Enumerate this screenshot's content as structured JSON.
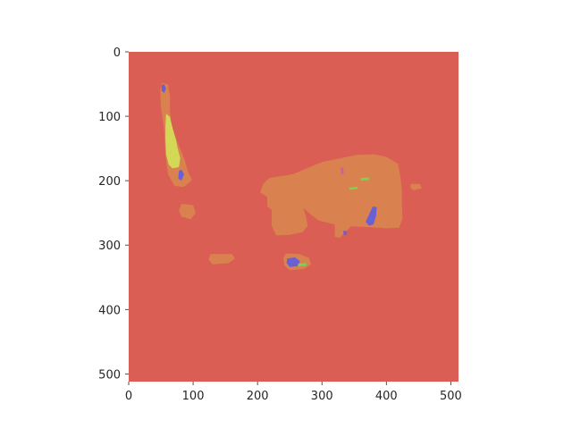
{
  "chart_data": {
    "type": "heatmap",
    "title": "",
    "xlabel": "",
    "ylabel": "",
    "xlim": [
      0,
      512
    ],
    "ylim": [
      512,
      0
    ],
    "grid": false,
    "x_ticks": [
      0,
      100,
      200,
      300,
      400,
      500
    ],
    "y_ticks": [
      0,
      100,
      200,
      300,
      400,
      500
    ],
    "x_tick_labels": [
      "0",
      "100",
      "200",
      "300",
      "400",
      "500"
    ],
    "y_tick_labels": [
      "0",
      "100",
      "200",
      "300",
      "400",
      "500"
    ],
    "colors": {
      "background": "#db5e55",
      "body": "#d9824f",
      "tail": "#d4d856",
      "blue": "#6b5fd4",
      "green": "#78d44e",
      "pink": "#d45c9e"
    },
    "regions": [
      {
        "name": "cat-body",
        "color_key": "body",
        "points": [
          [
            218,
            196
          ],
          [
            255,
            190
          ],
          [
            300,
            171
          ],
          [
            330,
            165
          ],
          [
            355,
            160
          ],
          [
            380,
            159
          ],
          [
            400,
            163
          ],
          [
            418,
            174
          ],
          [
            422,
            195
          ],
          [
            424,
            215
          ],
          [
            424,
            236
          ],
          [
            425,
            258
          ],
          [
            420,
            273
          ],
          [
            401,
            274
          ],
          [
            370,
            272
          ],
          [
            345,
            271
          ],
          [
            336,
            280
          ],
          [
            327,
            289
          ],
          [
            320,
            287
          ],
          [
            320,
            268
          ],
          [
            295,
            262
          ],
          [
            282,
            252
          ],
          [
            271,
            242
          ],
          [
            275,
            255
          ],
          [
            278,
            270
          ],
          [
            270,
            280
          ],
          [
            250,
            284
          ],
          [
            229,
            285
          ],
          [
            222,
            270
          ],
          [
            222,
            245
          ],
          [
            215,
            240
          ],
          [
            215,
            225
          ],
          [
            204,
            218
          ],
          [
            209,
            205
          ]
        ]
      },
      {
        "name": "cat-tail",
        "color_key": "body",
        "points": [
          [
            52,
            48
          ],
          [
            61,
            51
          ],
          [
            64,
            68
          ],
          [
            64,
            92
          ],
          [
            66,
            112
          ],
          [
            72,
            131
          ],
          [
            80,
            151
          ],
          [
            87,
            168
          ],
          [
            92,
            186
          ],
          [
            98,
            198
          ],
          [
            95,
            202
          ],
          [
            85,
            210
          ],
          [
            71,
            208
          ],
          [
            61,
            190
          ],
          [
            57,
            160
          ],
          [
            55,
            120
          ],
          [
            50,
            85
          ],
          [
            49,
            60
          ]
        ]
      },
      {
        "name": "front-paw",
        "color_key": "body",
        "points": [
          [
            244,
            313
          ],
          [
            265,
            314
          ],
          [
            280,
            320
          ],
          [
            283,
            330
          ],
          [
            272,
            337
          ],
          [
            250,
            339
          ],
          [
            242,
            332
          ],
          [
            240,
            320
          ]
        ]
      },
      {
        "name": "small-blob-1",
        "color_key": "body",
        "points": [
          [
            127,
            314
          ],
          [
            160,
            314
          ],
          [
            165,
            321
          ],
          [
            155,
            328
          ],
          [
            130,
            330
          ],
          [
            124,
            322
          ]
        ]
      },
      {
        "name": "small-blob-2",
        "color_key": "body",
        "points": [
          [
            82,
            236
          ],
          [
            100,
            238
          ],
          [
            104,
            250
          ],
          [
            96,
            260
          ],
          [
            82,
            256
          ],
          [
            78,
            246
          ]
        ]
      },
      {
        "name": "small-blob-3",
        "color_key": "body",
        "points": [
          [
            438,
            205
          ],
          [
            452,
            205
          ],
          [
            455,
            212
          ],
          [
            442,
            215
          ],
          [
            437,
            210
          ]
        ]
      },
      {
        "name": "tail-tip",
        "color_key": "tail",
        "points": [
          [
            58,
            96
          ],
          [
            64,
            101
          ],
          [
            68,
            118
          ],
          [
            73,
            135
          ],
          [
            76,
            150
          ],
          [
            80,
            165
          ],
          [
            78,
            179
          ],
          [
            68,
            181
          ],
          [
            62,
            175
          ],
          [
            58,
            159
          ],
          [
            57,
            135
          ],
          [
            57,
            115
          ]
        ]
      },
      {
        "name": "tail-spot-blue",
        "color_key": "blue",
        "points": [
          [
            51,
            52
          ],
          [
            55,
            50
          ],
          [
            58,
            57
          ],
          [
            55,
            64
          ],
          [
            51,
            60
          ]
        ]
      },
      {
        "name": "base-spot-blue",
        "color_key": "blue",
        "points": [
          [
            78,
            185
          ],
          [
            82,
            183
          ],
          [
            86,
            190
          ],
          [
            82,
            200
          ],
          [
            77,
            197
          ]
        ]
      },
      {
        "name": "paw-spot-blue",
        "color_key": "blue",
        "points": [
          [
            246,
            321
          ],
          [
            258,
            319
          ],
          [
            266,
            325
          ],
          [
            262,
            333
          ],
          [
            250,
            334
          ],
          [
            245,
            328
          ]
        ]
      },
      {
        "name": "leg-spot-blue-1",
        "color_key": "blue",
        "points": [
          [
            373,
            253
          ],
          [
            379,
            240
          ],
          [
            385,
            241
          ],
          [
            384,
            255
          ],
          [
            380,
            268
          ],
          [
            373,
            270
          ],
          [
            368,
            264
          ]
        ]
      },
      {
        "name": "leg-spot-blue-2",
        "color_key": "blue",
        "points": [
          [
            333,
            278
          ],
          [
            338,
            278
          ],
          [
            339,
            284
          ],
          [
            334,
            284
          ]
        ]
      },
      {
        "name": "green-spot-1",
        "color_key": "green",
        "points": [
          [
            360,
            196
          ],
          [
            373,
            195
          ],
          [
            373,
            199
          ],
          [
            360,
            200
          ]
        ]
      },
      {
        "name": "green-spot-2",
        "color_key": "green",
        "points": [
          [
            342,
            211
          ],
          [
            356,
            209
          ],
          [
            355,
            213
          ],
          [
            343,
            214
          ]
        ]
      },
      {
        "name": "green-spot-3",
        "color_key": "green",
        "points": [
          [
            263,
            329
          ],
          [
            276,
            328
          ],
          [
            276,
            332
          ],
          [
            263,
            333
          ]
        ]
      },
      {
        "name": "pink-spot",
        "color_key": "pink",
        "points": [
          [
            329,
            180
          ],
          [
            333,
            179
          ],
          [
            334,
            189
          ],
          [
            330,
            190
          ]
        ]
      }
    ]
  }
}
